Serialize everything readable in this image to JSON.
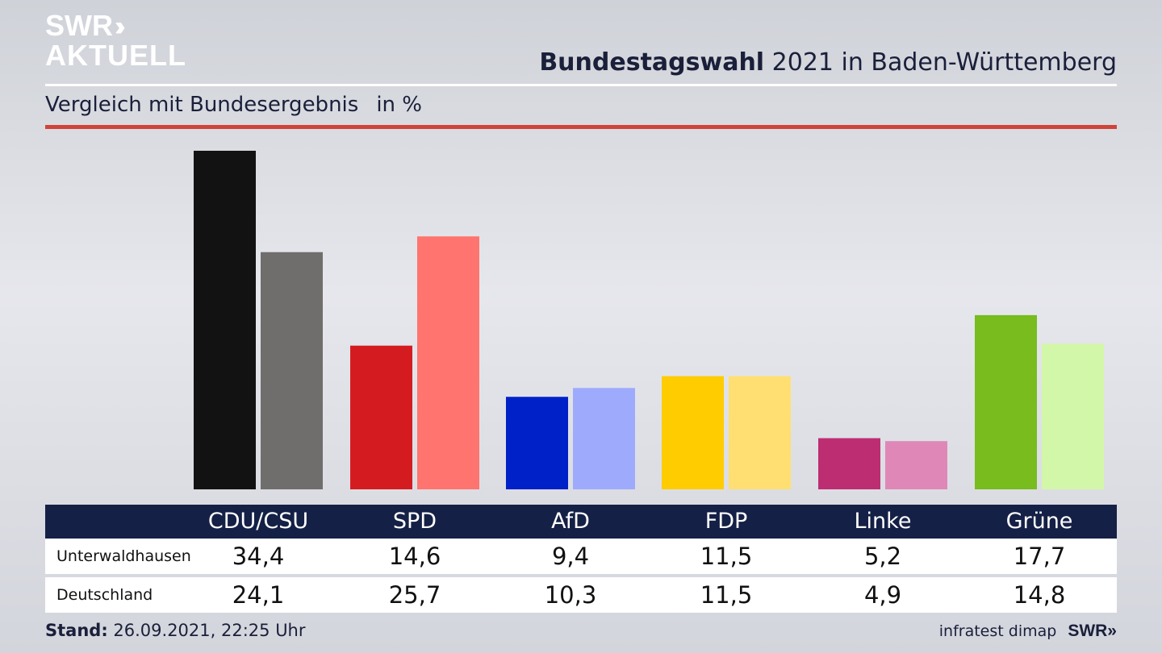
{
  "brand": {
    "logo_line1": "SWR",
    "logo_line1_chevrons": "››",
    "logo_line2": "AKTUELL",
    "footer_logo": "SWR»"
  },
  "header": {
    "title_bold": "Bundestagswahl",
    "title_rest": "2021 in Baden-Württemberg",
    "subtitle": "Vergleich mit Bundesergebnis",
    "unit": "in %"
  },
  "footer": {
    "stand_label": "Stand:",
    "stand_value": "26.09.2021, 22:25 Uhr",
    "source": "infratest dimap"
  },
  "colors": {
    "accent_red": "#d0443a",
    "header_navy": "#152046"
  },
  "chart_data": {
    "type": "bar",
    "categories": [
      "CDU/CSU",
      "SPD",
      "AfD",
      "FDP",
      "Linke",
      "Grüne"
    ],
    "series": [
      {
        "name": "Unterwaldhausen",
        "values": [
          34.4,
          14.6,
          9.4,
          11.5,
          5.2,
          17.7
        ],
        "colors": [
          "#121212",
          "#d41c20",
          "#0021c8",
          "#ffcc00",
          "#bd2d72",
          "#78bc1d"
        ]
      },
      {
        "name": "Deutschland",
        "values": [
          24.1,
          25.7,
          10.3,
          11.5,
          4.9,
          14.8
        ],
        "colors": [
          "#706e6c",
          "#ff746e",
          "#9eabfd",
          "#ffdf71",
          "#df88b8",
          "#d3f7a8"
        ]
      }
    ],
    "value_labels": {
      "Unterwaldhausen": [
        "34,4",
        "14,6",
        "9,4",
        "11,5",
        "5,2",
        "17,7"
      ],
      "Deutschland": [
        "24,1",
        "25,7",
        "10,3",
        "11,5",
        "4,9",
        "14,8"
      ]
    },
    "ylim": [
      0,
      34.4
    ],
    "grid": false,
    "legend": "none"
  }
}
